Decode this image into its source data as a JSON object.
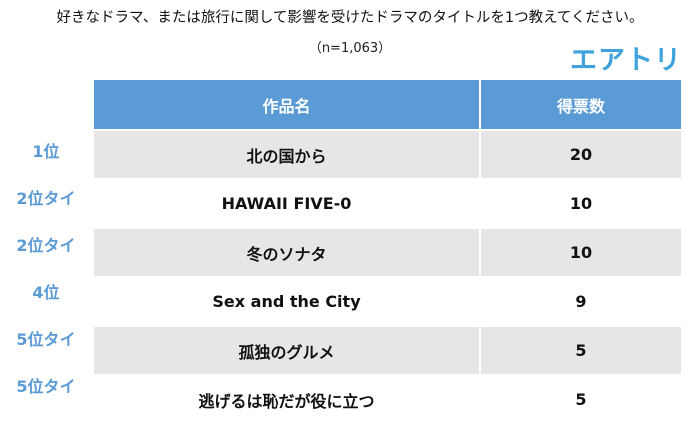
{
  "title": "好きなドラマ、または旅行に関して影響を受けたドラマのタイトルを1つ教えてください。",
  "sample": "（n=1,063）",
  "logo": "エアトリ",
  "colors": {
    "header": "#5b9bd5",
    "rank": "#5b9bd5",
    "logo": "#3fa2dc",
    "stripe": "#e6e6e6"
  },
  "columns": [
    "作品名",
    "得票数"
  ],
  "rows": [
    {
      "rank": "1位",
      "title": "北の国から",
      "votes": "20"
    },
    {
      "rank": "2位タイ",
      "title": "HAWAII FIVE-0",
      "votes": "10"
    },
    {
      "rank": "2位タイ",
      "title": "冬のソナタ",
      "votes": "10"
    },
    {
      "rank": "4位",
      "title": "Sex and the City",
      "votes": "9"
    },
    {
      "rank": "5位タイ",
      "title": "孤独のグルメ",
      "votes": "5"
    },
    {
      "rank": "5位タイ",
      "title": "逃げるは恥だが役に立つ",
      "votes": "5"
    }
  ]
}
